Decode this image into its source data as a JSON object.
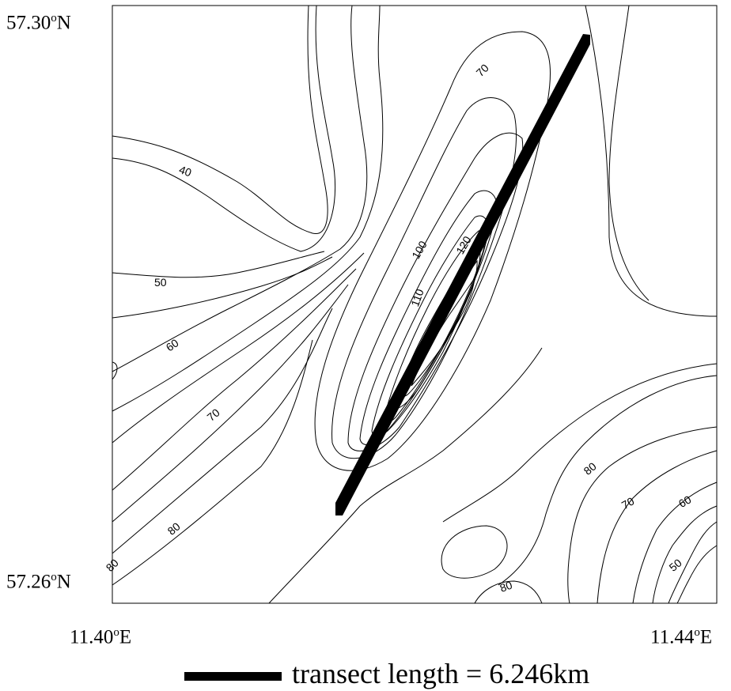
{
  "axes": {
    "lat_top": {
      "value": "57.30",
      "deg": "o",
      "hemi": "N"
    },
    "lat_bottom": {
      "value": "57.26",
      "deg": "o",
      "hemi": "N"
    },
    "lon_left": {
      "value": "11.40",
      "deg": "o",
      "hemi": "E"
    },
    "lon_right": {
      "value": "11.44",
      "deg": "o",
      "hemi": "E"
    }
  },
  "contour_labels": [
    "70",
    "40",
    "50",
    "60",
    "70",
    "80",
    "80",
    "100",
    "110",
    "120",
    "80",
    "70",
    "60",
    "50",
    "80"
  ],
  "transect": {
    "color": "#000000"
  },
  "legend": {
    "text": "transect length = 6.246km"
  }
}
